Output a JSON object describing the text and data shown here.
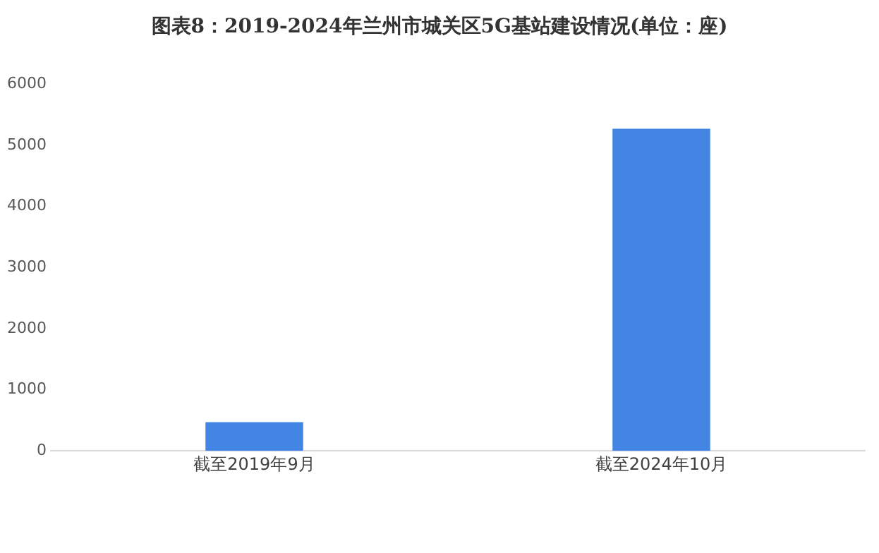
{
  "chart_data": {
    "type": "bar",
    "title": "图表8：2019-2024年兰州市城关区5G基站建设情况(单位：座)",
    "categories": [
      "截至2019年9月",
      "截至2024年10月"
    ],
    "values": [
      470,
      5270
    ],
    "color": "#4285e3",
    "ylim": [
      0,
      6000
    ],
    "yticks": [
      0,
      1000,
      2000,
      3000,
      4000,
      5000,
      6000
    ],
    "grid": false,
    "legend": false
  }
}
